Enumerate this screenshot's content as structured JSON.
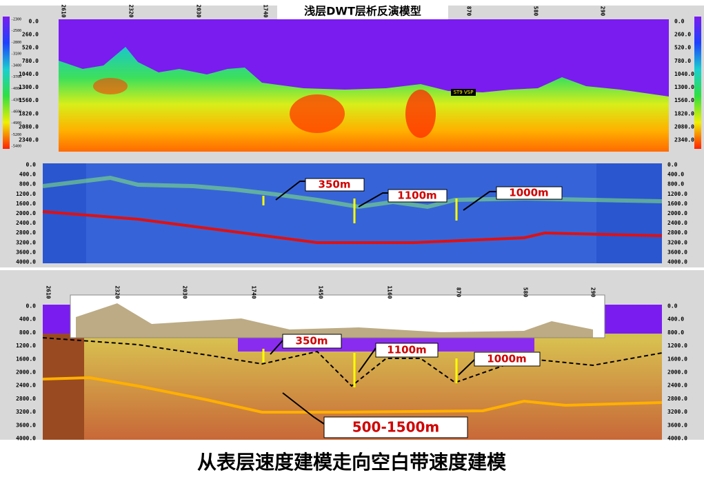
{
  "top_panel": {
    "title": "浅层DWT层析反演模型",
    "annotation": "ST9 VSP",
    "depth_ticks": [
      "0.0",
      "260.0",
      "520.0",
      "780.0",
      "1040.0",
      "1300.0",
      "1560.0",
      "1820.0",
      "2080.0",
      "2340.0"
    ],
    "trace_labels": [
      "2610",
      "2320",
      "2030",
      "1740",
      "870",
      "580",
      "290"
    ],
    "colorbar_labels": [
      "-2300",
      "-2500",
      "-2800",
      "-3100",
      "-3400",
      "-3700",
      "-4000",
      "-4300",
      "-4600",
      "-4900",
      "-5200",
      "-5400"
    ]
  },
  "middle_panel": {
    "depth_ticks": [
      "0.0",
      "400.0",
      "800.0",
      "1200.0",
      "1600.0",
      "2000.0",
      "2400.0",
      "2800.0",
      "3200.0",
      "3600.0",
      "4000.0"
    ],
    "callouts": [
      "350m",
      "1100m",
      "1000m"
    ]
  },
  "bottom_panel": {
    "depth_ticks": [
      "0.0",
      "400.0",
      "800.0",
      "1200.0",
      "1600.0",
      "2000.0",
      "2400.0",
      "2800.0",
      "3200.0",
      "3600.0",
      "4000.0"
    ],
    "trace_labels": [
      "2610",
      "2320",
      "2030",
      "1740",
      "1450",
      "1160",
      "870",
      "580",
      "290"
    ],
    "callouts": [
      "350m",
      "1100m",
      "1000m",
      "500-1500m"
    ]
  },
  "caption": "从表层速度建模走向空白带速度建模"
}
